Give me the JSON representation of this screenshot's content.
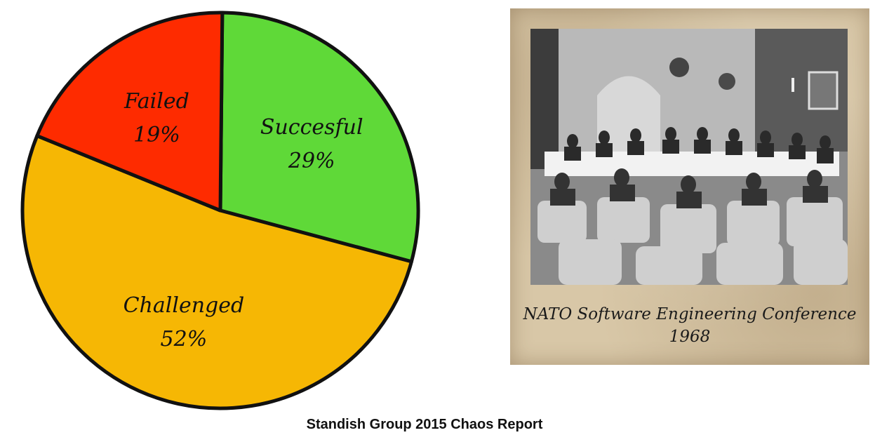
{
  "chart_data": {
    "type": "pie",
    "slices": [
      {
        "label": "Succesful",
        "value": 29,
        "value_label": "29%",
        "color": "#5fd938"
      },
      {
        "label": "Challenged",
        "value": 52,
        "value_label": "52%",
        "color": "#f6b704"
      },
      {
        "label": "Failed",
        "value": 19,
        "value_label": "19%",
        "color": "#fe2b00"
      }
    ],
    "title": "",
    "caption": "Standish Group 2015 Chaos Report"
  },
  "photo": {
    "caption_line1": "NATO Software Engineering Conference",
    "caption_line2": "1968"
  }
}
